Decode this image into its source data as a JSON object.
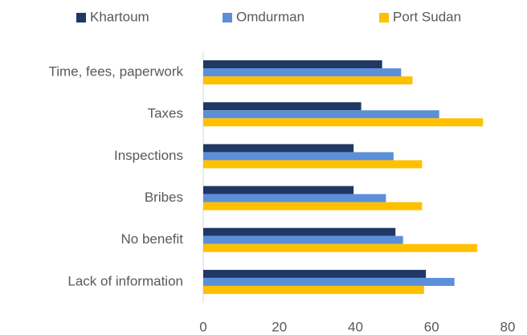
{
  "chart_data": {
    "type": "hbar",
    "categories": [
      "Time, fees, paperwork",
      "Taxes",
      "Inspections",
      "Bribes",
      "No benefit",
      "Lack of information"
    ],
    "series": [
      {
        "name": "Khartoum",
        "color": "#1f3864",
        "values": [
          47,
          41.5,
          39.5,
          39.5,
          50.5,
          58.5
        ]
      },
      {
        "name": "Omdurman",
        "color": "#5b8fd9",
        "values": [
          52,
          62,
          50,
          48,
          52.5,
          66
        ]
      },
      {
        "name": "Port Sudan",
        "color": "#ffc000",
        "values": [
          55,
          73.5,
          57.5,
          57.5,
          72,
          58
        ]
      }
    ],
    "xlim": [
      0,
      80
    ],
    "xticks": [
      0,
      20,
      40,
      60,
      80
    ]
  }
}
